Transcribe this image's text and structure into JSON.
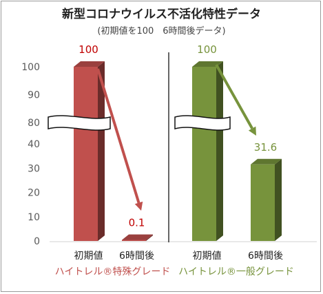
{
  "chart_data": {
    "type": "bar",
    "title": "新型コロナウイルス不活化特性データ",
    "subtitle": "(初期値を100　6時間後データ)",
    "y_ticks": [
      "0",
      "10",
      "20",
      "30",
      "40",
      "80",
      "90",
      "100"
    ],
    "axis_break": "40–80",
    "ylim": [
      0,
      100
    ],
    "groups": [
      {
        "name": "ハイトレル®特殊グレード",
        "color": "#c0504d",
        "categories": [
          "初期値",
          "6時間後"
        ],
        "values": [
          100,
          0.1
        ],
        "labels": [
          "100",
          "0.1"
        ]
      },
      {
        "name": "ハイトレル®一般グレード",
        "color": "#77933c",
        "categories": [
          "初期値",
          "6時間後"
        ],
        "values": [
          100,
          31.6
        ],
        "labels": [
          "100",
          "31.6"
        ]
      }
    ],
    "arrows": true,
    "grid": false
  }
}
